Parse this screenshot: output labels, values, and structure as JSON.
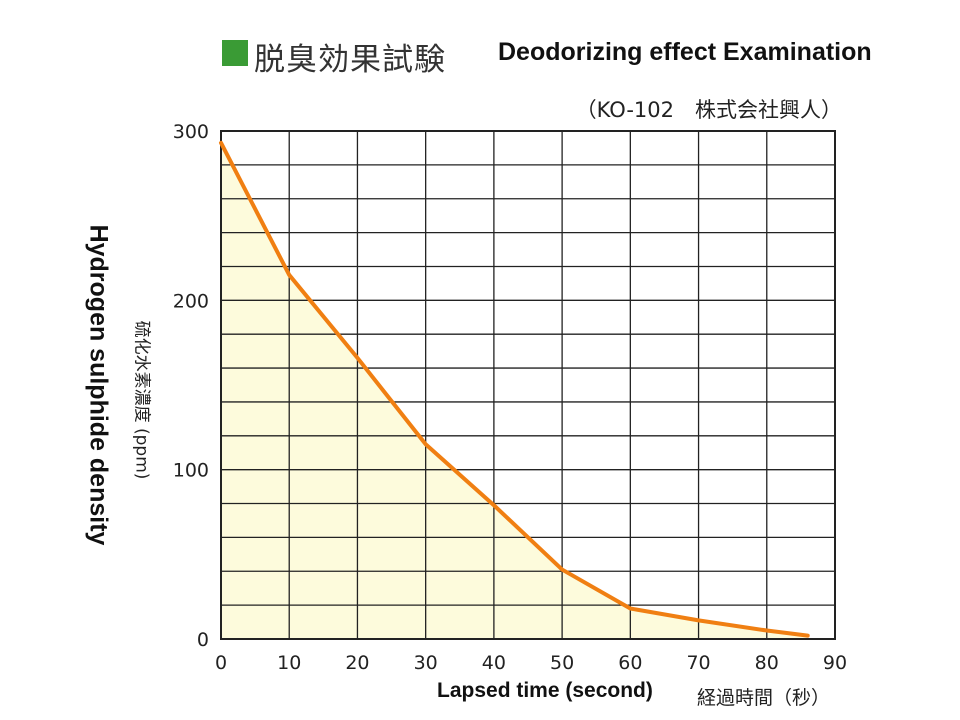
{
  "chart_data": {
    "type": "area",
    "title": "脱臭効果試験",
    "title_en": "Deodorizing effect Examination",
    "source": "（KO-102　株式会社興人）",
    "xlabel": "経過時間（秒）",
    "xlabel_en": "Lapsed time (second)",
    "ylabel": "硫化水素濃度 (ppm)",
    "ylabel_en": "Hydrogen sulphide density",
    "xlim": [
      0,
      90
    ],
    "ylim": [
      0,
      300
    ],
    "x_ticks": [
      0,
      10,
      20,
      30,
      40,
      50,
      60,
      70,
      80,
      90
    ],
    "y_ticks": [
      0,
      100,
      200,
      300
    ],
    "grid": true,
    "series": [
      {
        "x": [
          0,
          10,
          20,
          30,
          40,
          50,
          60,
          70,
          80,
          86
        ],
        "values": [
          293,
          215,
          166,
          115,
          79,
          41,
          18,
          11,
          5,
          2
        ]
      }
    ],
    "colors": {
      "line": "#f07f12",
      "fill": "#fdfbdc",
      "grid": "#222222",
      "title_square": "#3a9b35"
    }
  }
}
